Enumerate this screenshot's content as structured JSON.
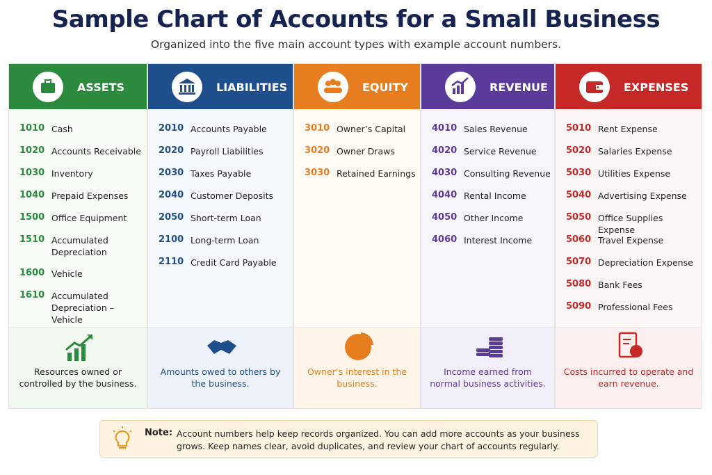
{
  "header": {
    "title": "Sample Chart of Accounts for a Small Business",
    "subtitle": "Organized into the five main account types with example account numbers."
  },
  "columns": [
    {
      "title": "ASSETS",
      "accounts": [
        [
          "1010",
          "Cash"
        ],
        [
          "1020",
          "Accounts Receivable"
        ],
        [
          "1030",
          "Inventory"
        ],
        [
          "1040",
          "Prepaid Expenses"
        ],
        [
          "1500",
          "Office Equipment"
        ],
        [
          "1510",
          "Accumulated Depreciation"
        ],
        [
          "1600",
          "Vehicle"
        ],
        [
          "1610",
          "Accumulated Depreciation – Vehicle"
        ]
      ],
      "description": "Resources owned or controlled by the business."
    },
    {
      "title": "LIABILITIES",
      "accounts": [
        [
          "2010",
          "Accounts Payable"
        ],
        [
          "2020",
          "Payroll Liabilities"
        ],
        [
          "2030",
          "Taxes Payable"
        ],
        [
          "2040",
          "Customer Deposits"
        ],
        [
          "2050",
          "Short-term Loan"
        ],
        [
          "2100",
          "Long-term Loan"
        ],
        [
          "2110",
          "Credit Card Payable"
        ]
      ],
      "description": "Amounts owed to others by the business."
    },
    {
      "title": "EQUITY",
      "accounts": [
        [
          "3010",
          "Owner’s Capital"
        ],
        [
          "3020",
          "Owner Draws"
        ],
        [
          "3030",
          "Retained Earnings"
        ]
      ],
      "description": "Owner’s interest in the business."
    },
    {
      "title": "REVENUE",
      "accounts": [
        [
          "4010",
          "Sales Revenue"
        ],
        [
          "4020",
          "Service Revenue"
        ],
        [
          "4030",
          "Consulting Revenue"
        ],
        [
          "4040",
          "Rental Income"
        ],
        [
          "4050",
          "Other Income"
        ],
        [
          "4060",
          "Interest Income"
        ]
      ],
      "description": "Income earned from normal business activities."
    },
    {
      "title": "EXPENSES",
      "accounts": [
        [
          "5010",
          "Rent Expense"
        ],
        [
          "5020",
          "Salaries Expense"
        ],
        [
          "5030",
          "Utilities Expense"
        ],
        [
          "5040",
          "Advertising Expense"
        ],
        [
          "5050",
          "Office Supplies Expense"
        ],
        [
          "5060",
          "Travel Expense"
        ],
        [
          "5070",
          "Depreciation Expense"
        ],
        [
          "5080",
          "Bank Fees"
        ],
        [
          "5090",
          "Professional Fees"
        ]
      ],
      "description": "Costs incurred to operate and earn revenue."
    }
  ],
  "note": {
    "label": "Note:",
    "text": "Account numbers help keep records organized. You can add more accounts as your business grows. Keep names clear, avoid duplicates, and review your chart of accounts regularly."
  }
}
